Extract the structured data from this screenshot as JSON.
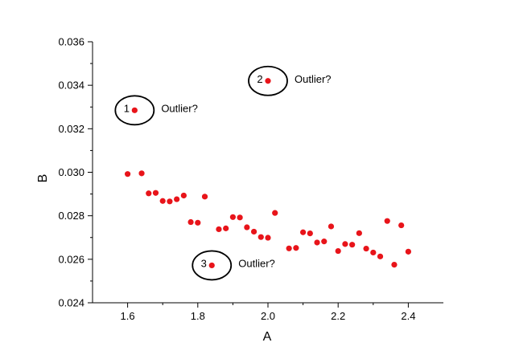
{
  "chart_data": {
    "type": "scatter",
    "xlabel": "A",
    "ylabel": "B",
    "xlim": [
      1.5,
      2.5
    ],
    "ylim": [
      0.024,
      0.036
    ],
    "x_ticks": [
      1.6,
      1.8,
      2.0,
      2.2,
      2.4
    ],
    "x_tick_labels": [
      "1.6",
      "1.8",
      "2.0",
      "2.2",
      "2.4"
    ],
    "y_ticks": [
      0.024,
      0.026,
      0.028,
      0.03,
      0.032,
      0.034,
      0.036
    ],
    "y_tick_labels": [
      "0.024",
      "0.026",
      "0.028",
      "0.030",
      "0.032",
      "0.034",
      "0.036"
    ],
    "grid": false,
    "marker_color": "#e8141a",
    "series": [
      {
        "points": [
          [
            1.6,
            0.02992
          ],
          [
            1.64,
            0.02995
          ],
          [
            1.66,
            0.02903
          ],
          [
            1.68,
            0.02905
          ],
          [
            1.7,
            0.02868
          ],
          [
            1.72,
            0.02866
          ],
          [
            1.74,
            0.02876
          ],
          [
            1.76,
            0.02893
          ],
          [
            1.78,
            0.02771
          ],
          [
            1.8,
            0.02768
          ],
          [
            1.82,
            0.02888
          ],
          [
            1.86,
            0.02738
          ],
          [
            1.88,
            0.02742
          ],
          [
            1.9,
            0.02794
          ],
          [
            1.92,
            0.02792
          ],
          [
            1.94,
            0.02747
          ],
          [
            1.96,
            0.02727
          ],
          [
            1.98,
            0.02702
          ],
          [
            2.0,
            0.02699
          ],
          [
            2.02,
            0.02813
          ],
          [
            2.06,
            0.0265
          ],
          [
            2.08,
            0.02652
          ],
          [
            2.1,
            0.02724
          ],
          [
            2.12,
            0.02719
          ],
          [
            2.14,
            0.02677
          ],
          [
            2.16,
            0.02682
          ],
          [
            2.18,
            0.02751
          ],
          [
            2.2,
            0.02638
          ],
          [
            2.22,
            0.0267
          ],
          [
            2.24,
            0.02667
          ],
          [
            2.26,
            0.0272
          ],
          [
            2.28,
            0.02649
          ],
          [
            2.3,
            0.02631
          ],
          [
            2.32,
            0.02613
          ],
          [
            2.34,
            0.02776
          ],
          [
            2.36,
            0.02575
          ],
          [
            2.38,
            0.02756
          ],
          [
            2.4,
            0.02635
          ],
          [
            1.62,
            0.03285
          ],
          [
            2.0,
            0.0342
          ],
          [
            1.84,
            0.02572
          ]
        ]
      }
    ],
    "annotations": [
      {
        "number": "1",
        "label": "Outlier?",
        "x": 1.62,
        "y": 0.03285
      },
      {
        "number": "2",
        "label": "Outlier?",
        "x": 2.0,
        "y": 0.0342
      },
      {
        "number": "3",
        "label": "Outlier?",
        "x": 1.84,
        "y": 0.02572
      }
    ]
  }
}
